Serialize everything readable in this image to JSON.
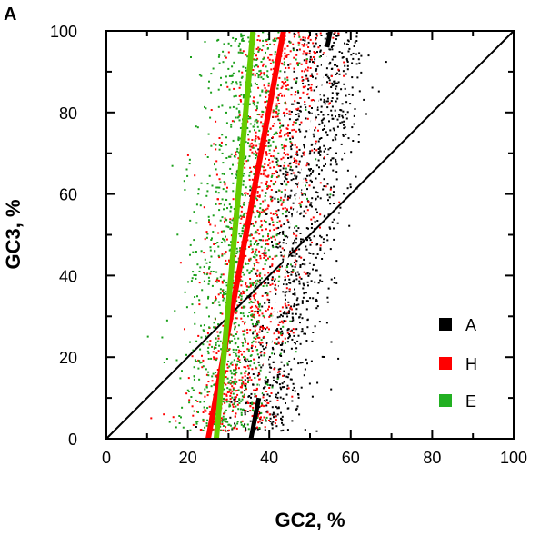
{
  "chart_data": {
    "type": "scatter",
    "panel_label": "A",
    "xlabel": "GC2, %",
    "ylabel": "GC3, %",
    "xlim": [
      0,
      100
    ],
    "ylim": [
      0,
      100
    ],
    "xticks": [
      "0",
      "20",
      "40",
      "60",
      "80",
      "100"
    ],
    "yticks": [
      "0",
      "20",
      "40",
      "60",
      "80",
      "100"
    ],
    "grid": false,
    "legend_position": "bottom-right",
    "diagonal": {
      "x": [
        0,
        100
      ],
      "y": [
        0,
        100
      ],
      "color": "#000000"
    },
    "series": [
      {
        "name": "A",
        "color": "#000000",
        "regression_color": "#ffffff",
        "regression": {
          "x": [
            35.5,
            55
          ],
          "y": [
            0,
            100
          ]
        },
        "cloud": {
          "x_center_at_y0": 38,
          "x_center_at_y100": 56,
          "x_spread": 8,
          "y_range": [
            2,
            100
          ]
        }
      },
      {
        "name": "H",
        "color": "#ff0000",
        "regression_color": "#ff0000",
        "regression": {
          "x": [
            25,
            43.5
          ],
          "y": [
            0,
            100
          ]
        },
        "cloud": {
          "x_center_at_y0": 30,
          "x_center_at_y100": 44,
          "x_spread": 10,
          "y_range": [
            2,
            100
          ]
        }
      },
      {
        "name": "E",
        "color": "#1a9f1a",
        "regression_color": "#66cc00",
        "regression": {
          "x": [
            27,
            36
          ],
          "y": [
            0,
            100
          ]
        },
        "cloud": {
          "x_center_at_y0": 28,
          "x_center_at_y100": 37,
          "x_spread": 10,
          "y_range": [
            2,
            100
          ]
        }
      }
    ]
  }
}
